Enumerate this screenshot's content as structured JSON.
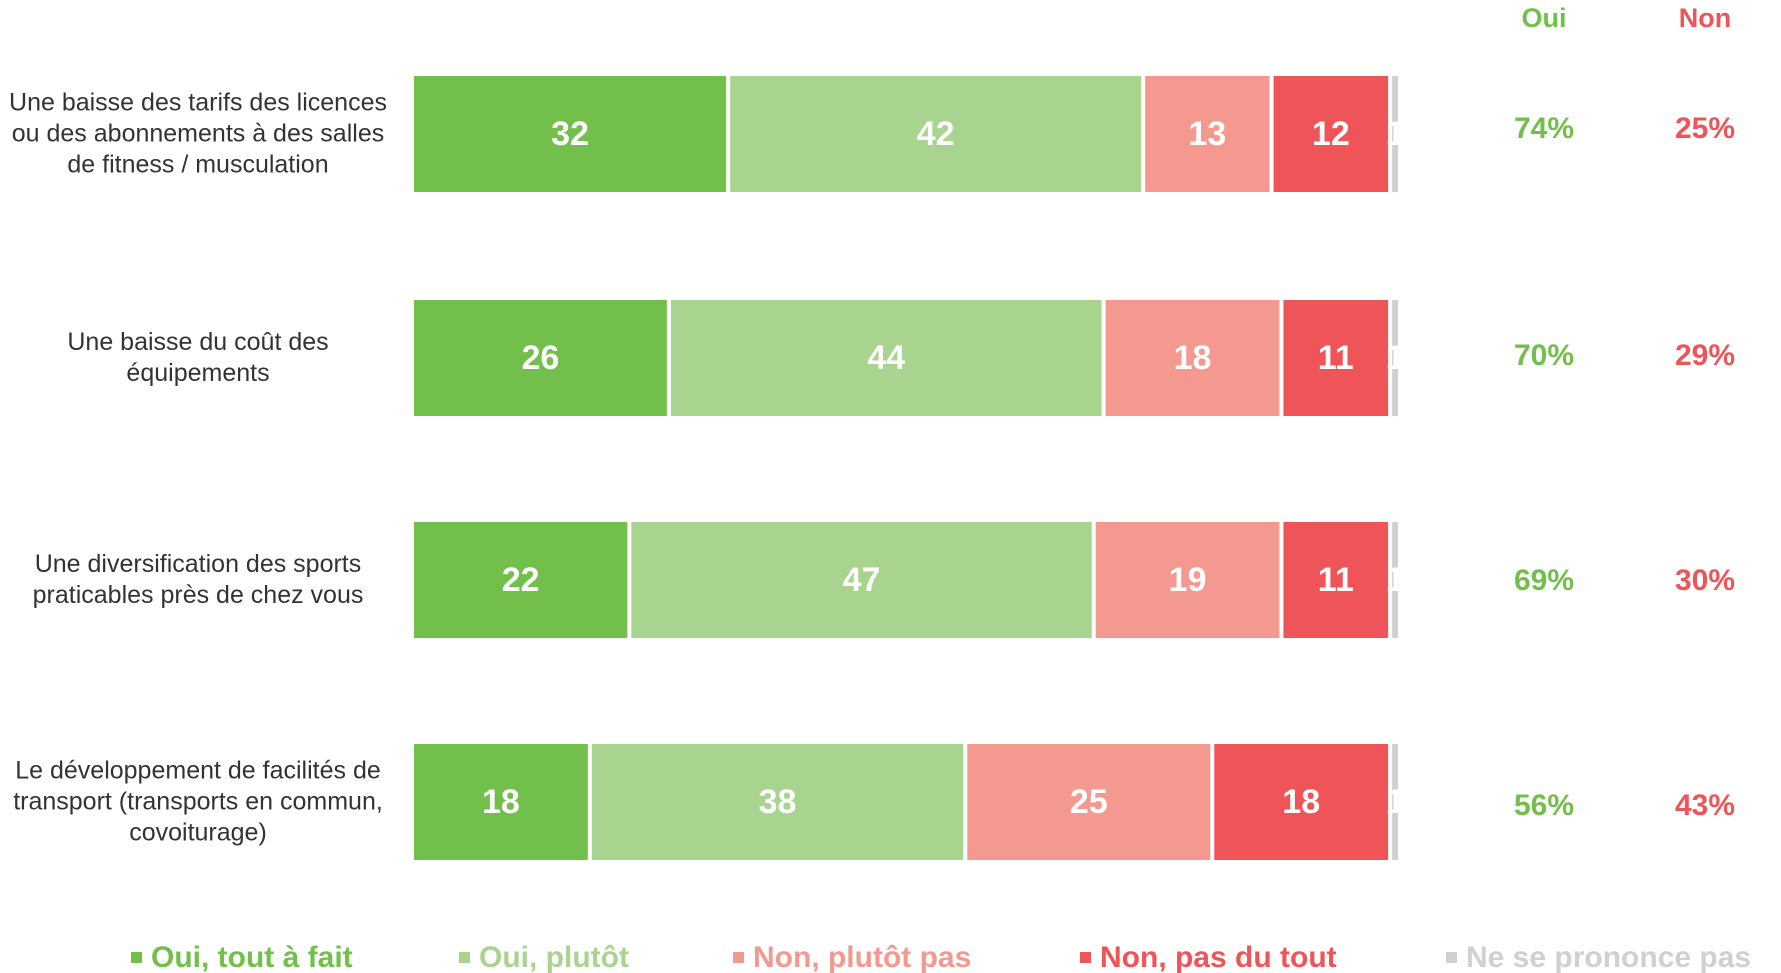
{
  "chart_data": {
    "type": "stacked_barh",
    "categories": [
      "Une baisse des tarifs des licences ou des abonnements à des salles de fitness / musculation",
      "Une baisse du coût des équipements",
      "Une diversification des sports praticables près de chez vous",
      "Le développement de facilités de transport (transports en commun, covoiturage)"
    ],
    "series": [
      {
        "name": "Oui, tout à fait",
        "color": "#72bf4c",
        "values": [
          32,
          26,
          22,
          18
        ]
      },
      {
        "name": "Oui, plutôt",
        "color": "#a8d490",
        "values": [
          42,
          44,
          47,
          38
        ]
      },
      {
        "name": "Non, plutôt pas",
        "color": "#f4998f",
        "values": [
          13,
          18,
          19,
          25
        ]
      },
      {
        "name": "Non, pas du tout",
        "color": "#ef5459",
        "values": [
          12,
          11,
          11,
          18
        ]
      },
      {
        "name": "Ne se prononce pas",
        "color": "#d0d0d0",
        "values": [
          1,
          1,
          1,
          1
        ]
      }
    ],
    "xlim": [
      0,
      100
    ],
    "totals": [
      {
        "header": "Oui",
        "color": "#72bf4c",
        "values": [
          74,
          70,
          69,
          56
        ],
        "value_labels": [
          "74%",
          "70%",
          "69%",
          "56%"
        ]
      },
      {
        "header": "Non",
        "color": "#ef5459",
        "values": [
          25,
          29,
          30,
          43
        ],
        "value_labels": [
          "25%",
          "29%",
          "30%",
          "43%"
        ]
      }
    ]
  }
}
